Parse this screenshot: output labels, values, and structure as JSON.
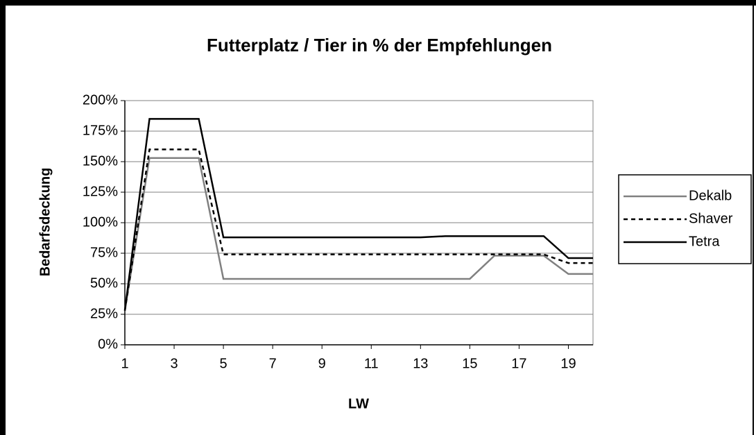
{
  "chart_data": {
    "type": "line",
    "title": "Futterplatz / Tier in % der Empfehlungen",
    "x_label": "LW",
    "y_label": "Bedarfsdeckung",
    "x": [
      1,
      2,
      3,
      4,
      5,
      6,
      7,
      8,
      9,
      10,
      11,
      12,
      13,
      14,
      15,
      16,
      17,
      18,
      19,
      20
    ],
    "xlim": [
      1,
      20
    ],
    "xticks": [
      1,
      3,
      5,
      7,
      9,
      11,
      13,
      15,
      17,
      19
    ],
    "ylim": [
      0,
      200
    ],
    "yticks": [
      {
        "value": 0,
        "label": "0%"
      },
      {
        "value": 25,
        "label": "25%"
      },
      {
        "value": 50,
        "label": "50%"
      },
      {
        "value": 75,
        "label": "75%"
      },
      {
        "value": 100,
        "label": "100%"
      },
      {
        "value": 125,
        "label": "125%"
      },
      {
        "value": 150,
        "label": "150%"
      },
      {
        "value": 175,
        "label": "175%"
      },
      {
        "value": 200,
        "label": "200%"
      }
    ],
    "grid": true,
    "legend": "right",
    "series": [
      {
        "name": "Dekalb",
        "color": "#808080",
        "dashed": false,
        "values": [
          28,
          153,
          153,
          153,
          54,
          54,
          54,
          54,
          54,
          54,
          54,
          54,
          54,
          54,
          54,
          73,
          73,
          73,
          58,
          58
        ]
      },
      {
        "name": "Shaver",
        "color": "#000000",
        "dashed": true,
        "values": [
          28,
          160,
          160,
          160,
          74,
          74,
          74,
          74,
          74,
          74,
          74,
          74,
          74,
          74,
          74,
          74,
          74,
          74,
          67,
          67
        ]
      },
      {
        "name": "Tetra",
        "color": "#000000",
        "dashed": false,
        "values": [
          28,
          185,
          185,
          185,
          88,
          88,
          88,
          88,
          88,
          88,
          88,
          88,
          88,
          89,
          89,
          89,
          89,
          89,
          71,
          71
        ]
      }
    ]
  }
}
